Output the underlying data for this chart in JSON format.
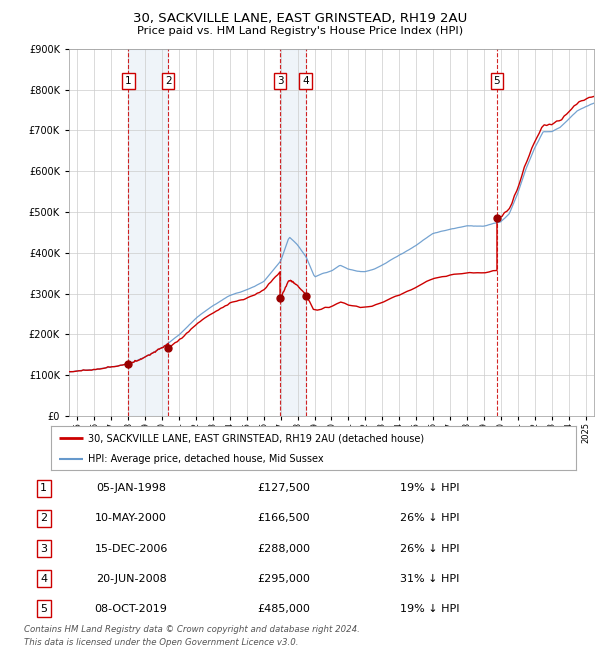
{
  "title": "30, SACKVILLE LANE, EAST GRINSTEAD, RH19 2AU",
  "subtitle": "Price paid vs. HM Land Registry's House Price Index (HPI)",
  "legend_label_red": "30, SACKVILLE LANE, EAST GRINSTEAD, RH19 2AU (detached house)",
  "legend_label_blue": "HPI: Average price, detached house, Mid Sussex",
  "footer": "Contains HM Land Registry data © Crown copyright and database right 2024.\nThis data is licensed under the Open Government Licence v3.0.",
  "sales": [
    {
      "num": 1,
      "date": "05-JAN-1998",
      "price": 127500,
      "pct": "19%",
      "dir": "↓"
    },
    {
      "num": 2,
      "date": "10-MAY-2000",
      "price": 166500,
      "pct": "26%",
      "dir": "↓"
    },
    {
      "num": 3,
      "date": "15-DEC-2006",
      "price": 288000,
      "pct": "26%",
      "dir": "↓"
    },
    {
      "num": 4,
      "date": "20-JUN-2008",
      "price": 295000,
      "pct": "31%",
      "dir": "↓"
    },
    {
      "num": 5,
      "date": "08-OCT-2019",
      "price": 485000,
      "pct": "19%",
      "dir": "↓"
    }
  ],
  "sale_dates_x": [
    1998.01,
    2000.36,
    2006.96,
    2008.47,
    2019.77
  ],
  "red_color": "#cc0000",
  "blue_color": "#6699cc",
  "vline_color": "#cc0000",
  "bg_color": "#ffffff",
  "grid_color": "#cccccc",
  "ylim": [
    0,
    900000
  ],
  "xlim_start": 1994.5,
  "xlim_end": 2025.5,
  "hpi_anchors": [
    [
      1994.5,
      108000
    ],
    [
      1995.0,
      110000
    ],
    [
      1996.0,
      112000
    ],
    [
      1997.0,
      118000
    ],
    [
      1998.0,
      128000
    ],
    [
      1999.0,
      145000
    ],
    [
      2000.0,
      168000
    ],
    [
      2001.0,
      200000
    ],
    [
      2002.0,
      240000
    ],
    [
      2003.0,
      270000
    ],
    [
      2004.0,
      295000
    ],
    [
      2005.0,
      310000
    ],
    [
      2006.0,
      330000
    ],
    [
      2007.0,
      380000
    ],
    [
      2007.5,
      440000
    ],
    [
      2008.0,
      420000
    ],
    [
      2008.5,
      390000
    ],
    [
      2009.0,
      340000
    ],
    [
      2009.5,
      350000
    ],
    [
      2010.0,
      355000
    ],
    [
      2010.5,
      370000
    ],
    [
      2011.0,
      360000
    ],
    [
      2011.5,
      355000
    ],
    [
      2012.0,
      355000
    ],
    [
      2012.5,
      360000
    ],
    [
      2013.0,
      370000
    ],
    [
      2014.0,
      395000
    ],
    [
      2015.0,
      420000
    ],
    [
      2016.0,
      450000
    ],
    [
      2017.0,
      460000
    ],
    [
      2018.0,
      470000
    ],
    [
      2019.0,
      470000
    ],
    [
      2019.5,
      475000
    ],
    [
      2020.0,
      480000
    ],
    [
      2020.5,
      500000
    ],
    [
      2021.0,
      550000
    ],
    [
      2021.5,
      610000
    ],
    [
      2022.0,
      660000
    ],
    [
      2022.5,
      700000
    ],
    [
      2023.0,
      700000
    ],
    [
      2023.5,
      710000
    ],
    [
      2024.0,
      730000
    ],
    [
      2024.5,
      750000
    ],
    [
      2025.0,
      760000
    ],
    [
      2025.5,
      770000
    ]
  ]
}
